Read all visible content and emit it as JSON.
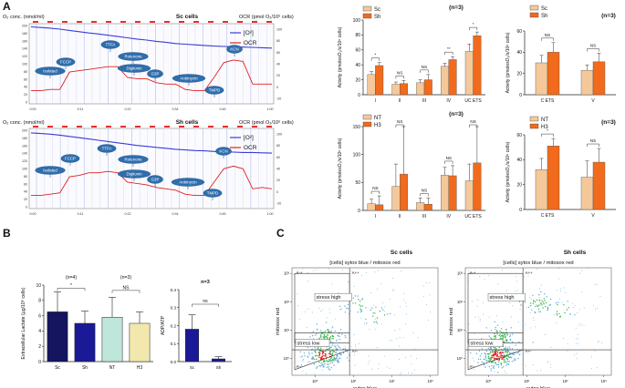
{
  "panel_letters": {
    "a": "A",
    "b": "B",
    "c": "C"
  },
  "traces": [
    {
      "y_title": "O₂ conc. (nmol/ml)",
      "cell_title": "Sc cells",
      "r_title": "OCR (pmol O₂/10⁶ cells)",
      "legend": [
        "[O²]",
        "OCR"
      ],
      "left_ticks": [
        "200",
        "180",
        "160",
        "140",
        "120",
        "100",
        "80",
        "60",
        "40",
        "20",
        "0"
      ],
      "right_ticks": [
        "100",
        "80",
        "60",
        "40",
        "20",
        "0",
        "-20"
      ],
      "time_ticks": [
        "0:00",
        "0:11",
        "0:22",
        "0:34",
        "0:45",
        "1:00"
      ],
      "injections": [
        "Isolated",
        "FCCP",
        "TTFA",
        "Rotenone",
        "Digitonin",
        "G3P",
        "Antimycin",
        "KCN",
        "TMPD"
      ],
      "o2_curve": [
        240,
        238,
        236,
        233,
        229,
        225,
        221,
        218,
        214,
        210,
        206,
        202,
        199,
        195,
        192,
        188,
        186,
        184,
        182,
        180,
        179,
        178,
        177,
        176,
        175,
        174
      ],
      "ocr_curve": [
        10,
        10,
        12,
        12,
        38,
        40,
        42,
        44,
        46,
        46,
        30,
        28,
        28,
        22,
        20,
        20,
        12,
        10,
        10,
        30,
        52,
        56,
        54,
        20,
        20,
        20
      ]
    },
    {
      "y_title": "O₂ conc. (nmol/ml)",
      "cell_title": "Sh cells",
      "r_title": "OCR (pmol O₂/10⁶ cells)",
      "legend": [
        "[O²]",
        "OCR"
      ],
      "left_ticks": [
        "200",
        "180",
        "160",
        "140",
        "120",
        "100",
        "80",
        "60",
        "40",
        "20",
        "0"
      ],
      "right_ticks": [
        "100",
        "80",
        "60",
        "40",
        "20",
        "0",
        "-20"
      ],
      "time_ticks": [
        "0:00",
        "0:11",
        "0:22",
        "0:34",
        "0:45",
        "1:00"
      ],
      "injections": [
        "Isolated",
        "FCCP",
        "TTFA",
        "Rotenone",
        "Digitonin",
        "G3P",
        "Antimycin",
        "KCN",
        "TMPD"
      ],
      "o2_curve": [
        236,
        234,
        232,
        229,
        225,
        221,
        217,
        213,
        209,
        205,
        201,
        197,
        194,
        191,
        188,
        185,
        183,
        181,
        180,
        178,
        177,
        176,
        175,
        175,
        174,
        173
      ],
      "ocr_curve": [
        10,
        10,
        12,
        14,
        38,
        40,
        44,
        44,
        46,
        44,
        30,
        28,
        26,
        22,
        20,
        18,
        12,
        10,
        10,
        30,
        50,
        54,
        50,
        20,
        22,
        20
      ]
    }
  ],
  "chart_data": [
    {
      "id": "A-complex-sc-sh",
      "type": "bar",
      "title": "(n=3)",
      "xlabel": "",
      "ylabel": "Activity (pmolesO₂/s/10⁶ cells)",
      "categories": [
        "I",
        "II",
        "III",
        "IV",
        "UC ETS"
      ],
      "series": [
        {
          "name": "Sc",
          "color": "#f5c89a",
          "values": [
            27,
            14,
            16,
            38,
            58
          ],
          "errors": [
            4,
            3,
            4,
            4,
            10
          ]
        },
        {
          "name": "Sh",
          "color": "#f26a1b",
          "values": [
            39,
            15,
            20,
            47,
            79
          ],
          "errors": [
            4,
            4,
            7,
            4,
            5
          ]
        }
      ],
      "significance": [
        "*",
        "NS",
        "NS",
        "**",
        "*"
      ],
      "ylim": [
        0,
        100
      ],
      "yticks": [
        "0",
        "20",
        "40",
        "60",
        "80",
        "100"
      ]
    },
    {
      "id": "A-ets-sc-sh",
      "type": "bar",
      "title": "(n=3)",
      "xlabel": "",
      "ylabel": "Activity (pmolesO₂/s/10⁶ cells)",
      "categories": [
        "C ETS",
        "V"
      ],
      "series": [
        {
          "name": "Sc",
          "color": "#f5c89a",
          "values": [
            30,
            23
          ],
          "errors": [
            7,
            5
          ]
        },
        {
          "name": "Sh",
          "color": "#f26a1b",
          "values": [
            40,
            31
          ],
          "errors": [
            9,
            8
          ]
        }
      ],
      "significance": [
        "NS",
        "NS"
      ],
      "ylim": [
        0,
        60
      ],
      "yticks": [
        "0",
        "20",
        "40",
        "60"
      ]
    },
    {
      "id": "A-complex-nt-h3",
      "type": "bar",
      "title": "(n=3)",
      "xlabel": "",
      "ylabel": "Activity (pmolesO₂/s/10⁶ cells)",
      "categories": [
        "I",
        "II",
        "III",
        "IV",
        "UC ETS"
      ],
      "series": [
        {
          "name": "NT",
          "color": "#f5c89a",
          "values": [
            12,
            43,
            14,
            63,
            53
          ],
          "errors": [
            8,
            40,
            8,
            14,
            30
          ]
        },
        {
          "name": "H3",
          "color": "#f26a1b",
          "values": [
            10,
            65,
            11,
            62,
            85
          ],
          "errors": [
            16,
            85,
            11,
            18,
            65
          ]
        }
      ],
      "significance": [
        "NS",
        "NS",
        "NS",
        "NS",
        "NS"
      ],
      "ylim": [
        0,
        150
      ],
      "yticks": [
        "0",
        "50",
        "100",
        "150"
      ]
    },
    {
      "id": "A-ets-nt-h3",
      "type": "bar",
      "title": "(n=3)",
      "xlabel": "",
      "ylabel": "Activity (pmolesO₂/s/10⁶ cells)",
      "categories": [
        "C ETS",
        "V"
      ],
      "series": [
        {
          "name": "NT",
          "color": "#f5c89a",
          "values": [
            32,
            26
          ],
          "errors": [
            9,
            13
          ]
        },
        {
          "name": "H3",
          "color": "#f26a1b",
          "values": [
            51,
            38
          ],
          "errors": [
            6,
            11
          ]
        }
      ],
      "significance": [
        "*",
        "NS"
      ],
      "ylim": [
        0,
        60
      ],
      "yticks": [
        "0",
        "20",
        "40",
        "60"
      ]
    },
    {
      "id": "B-lactate",
      "type": "bar",
      "title": "",
      "xlabel": "",
      "ylabel": "Extracellular Lactate (µg/10⁶ cells)",
      "categories": [
        "Sc",
        "Sh",
        "NT",
        "H3"
      ],
      "values": [
        6.5,
        5.0,
        5.8,
        5.0
      ],
      "errors": [
        2.6,
        1.6,
        2.6,
        1.5
      ],
      "colors": [
        "#14145f",
        "#1a1a96",
        "#bfe6da",
        "#f2e8ad"
      ],
      "groups": [
        {
          "label": "(n=4)",
          "sig": "*"
        },
        {
          "label": "(n=3)",
          "sig": "NS"
        }
      ],
      "ylim": [
        0,
        10
      ],
      "yticks": [
        "0",
        "2",
        "4",
        "6",
        "8",
        "10"
      ]
    },
    {
      "id": "B-adp-atp",
      "type": "bar",
      "title": "n=3",
      "xlabel": "",
      "ylabel": "ADP/ATP",
      "categories": [
        "Sc",
        "Sh"
      ],
      "values": [
        0.18,
        0.015
      ],
      "errors": [
        0.08,
        0.012
      ],
      "colors": [
        "#1a1a96",
        "#1a1a96"
      ],
      "significance": [
        "ns"
      ],
      "ylim": [
        0,
        0.4
      ],
      "yticks": [
        "0.0",
        "0.1",
        "0.2",
        "0.3",
        "0.4"
      ]
    },
    {
      "id": "C-sc-flow",
      "type": "scatter",
      "title": "Sc cells",
      "subtitle": "[cells] sytox blue / mitosox red",
      "xlabel": "sytox blue",
      "ylabel": "mitosox red",
      "xticks": [
        "10⁰",
        "10¹",
        "10²",
        "10³"
      ],
      "yticks": [
        "10⁰",
        "10¹",
        "10²",
        "10³"
      ],
      "gates": [
        "A-+",
        "A++",
        "stress high",
        "stress low",
        "A+-",
        "A--"
      ],
      "clusters": [
        {
          "x": 0.25,
          "y": 0.1,
          "n": 220,
          "sd": 0.25
        },
        {
          "x": 0.3,
          "y": 0.75,
          "n": 80,
          "sd": 0.2
        },
        {
          "x": 1.1,
          "y": 1.9,
          "n": 25,
          "sd": 0.2
        },
        {
          "x": 1.6,
          "y": 1.5,
          "n": 20,
          "sd": 0.2
        }
      ]
    },
    {
      "id": "C-sh-flow",
      "type": "scatter",
      "title": "Sh cells",
      "subtitle": "[cells] sytox blue / mitosox red",
      "xlabel": "sytox blue",
      "ylabel": "mitosox red",
      "xticks": [
        "10⁰",
        "10¹",
        "10²",
        "10³"
      ],
      "yticks": [
        "10⁰",
        "10¹",
        "10²",
        "10³"
      ],
      "gates": [
        "A-+",
        "A++",
        "stress high",
        "stress low",
        "A+-",
        "A--"
      ],
      "clusters": [
        {
          "x": 0.25,
          "y": 0.1,
          "n": 230,
          "sd": 0.25
        },
        {
          "x": 0.3,
          "y": 0.75,
          "n": 90,
          "sd": 0.2
        },
        {
          "x": 1.3,
          "y": 1.95,
          "n": 45,
          "sd": 0.2
        },
        {
          "x": 1.9,
          "y": 1.7,
          "n": 20,
          "sd": 0.2
        }
      ]
    }
  ]
}
